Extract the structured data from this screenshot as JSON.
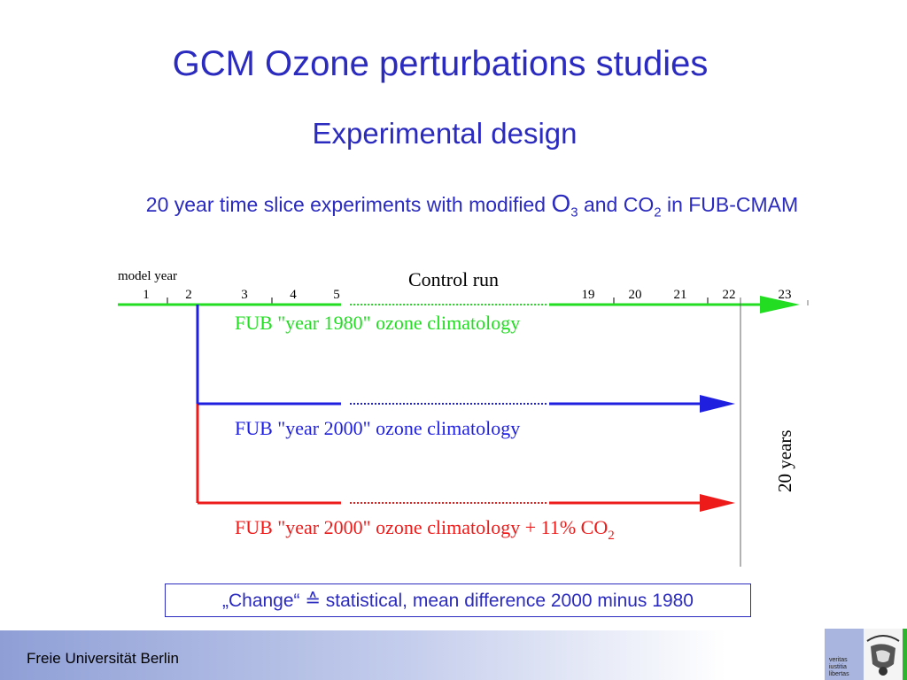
{
  "slide": {
    "title": "GCM Ozone perturbations studies",
    "subtitle": "Experimental design",
    "intro": {
      "text_a": "20 year time slice experiments with modified ",
      "o3_main": "O",
      "o3_sub": "3",
      "text_b": " and CO",
      "co2_sub": "2",
      "text_c": " in FUB-CMAM"
    },
    "note": "„Change“ ≙ statistical, mean difference 2000 minus 1980",
    "footer": "Freie Universität Berlin",
    "logo": {
      "motto_lines": [
        "veritas",
        "iustitia",
        "libertas"
      ],
      "seal_text": "LIBERTAS"
    }
  },
  "diagram": {
    "axis_label": "model year",
    "years": [
      {
        "label": "1",
        "tick": false
      },
      {
        "label": "2",
        "tick": true
      },
      {
        "label": "3",
        "tick": false
      },
      {
        "label": "4",
        "tick": true
      },
      {
        "label": "5",
        "tick": false
      },
      {
        "label": "19",
        "tick": false
      },
      {
        "label": "20",
        "tick": true
      },
      {
        "label": "21",
        "tick": false
      },
      {
        "label": "22",
        "tick": true
      },
      {
        "label": "23",
        "tick": false
      }
    ],
    "control_label": "Control run",
    "duration_label": "20 years",
    "runs": [
      {
        "id": "control",
        "color": "#22dd22",
        "label": "FUB \"year 1980\" ozone climatology",
        "label_sub": ""
      },
      {
        "id": "ozone2000",
        "color": "#1f1fdf",
        "label": "FUB \"year 2000\" ozone climatology",
        "label_sub": ""
      },
      {
        "id": "ozone2000co2",
        "color": "#ee1b1b",
        "label": "FUB \"year 2000\" ozone climatology + 11% CO",
        "label_sub": "2"
      }
    ]
  }
}
